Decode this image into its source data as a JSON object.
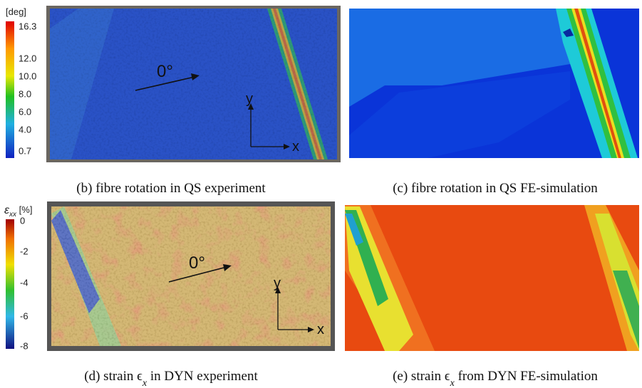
{
  "panels": [
    {
      "caption_parts": [
        "(b) fibre rotation in QS experiment"
      ],
      "colorbar": {
        "title_parts": [
          "[deg]"
        ],
        "ticks": [
          "16.3",
          "12.0",
          "10.0",
          "8.0",
          "6.0",
          "4.0",
          "0.7"
        ]
      },
      "annotations": {
        "angle": "0°",
        "x": "x",
        "y": "y"
      }
    },
    {
      "caption_parts": [
        "(c) fibre rotation in QS FE-simulation"
      ]
    },
    {
      "caption_parts": [
        "(d) strain ϵ",
        "x",
        " in DYN experiment"
      ],
      "colorbar": {
        "title_parts": [
          "ε",
          "xx",
          " [%]"
        ],
        "ticks": [
          "0",
          "-2",
          "-4",
          "-6",
          "-8"
        ]
      },
      "annotations": {
        "angle": "0°",
        "x": "x",
        "y": "y"
      }
    },
    {
      "caption_parts": [
        "(e) strain ϵ",
        "x",
        " from DYN FE-simulation"
      ]
    }
  ]
}
